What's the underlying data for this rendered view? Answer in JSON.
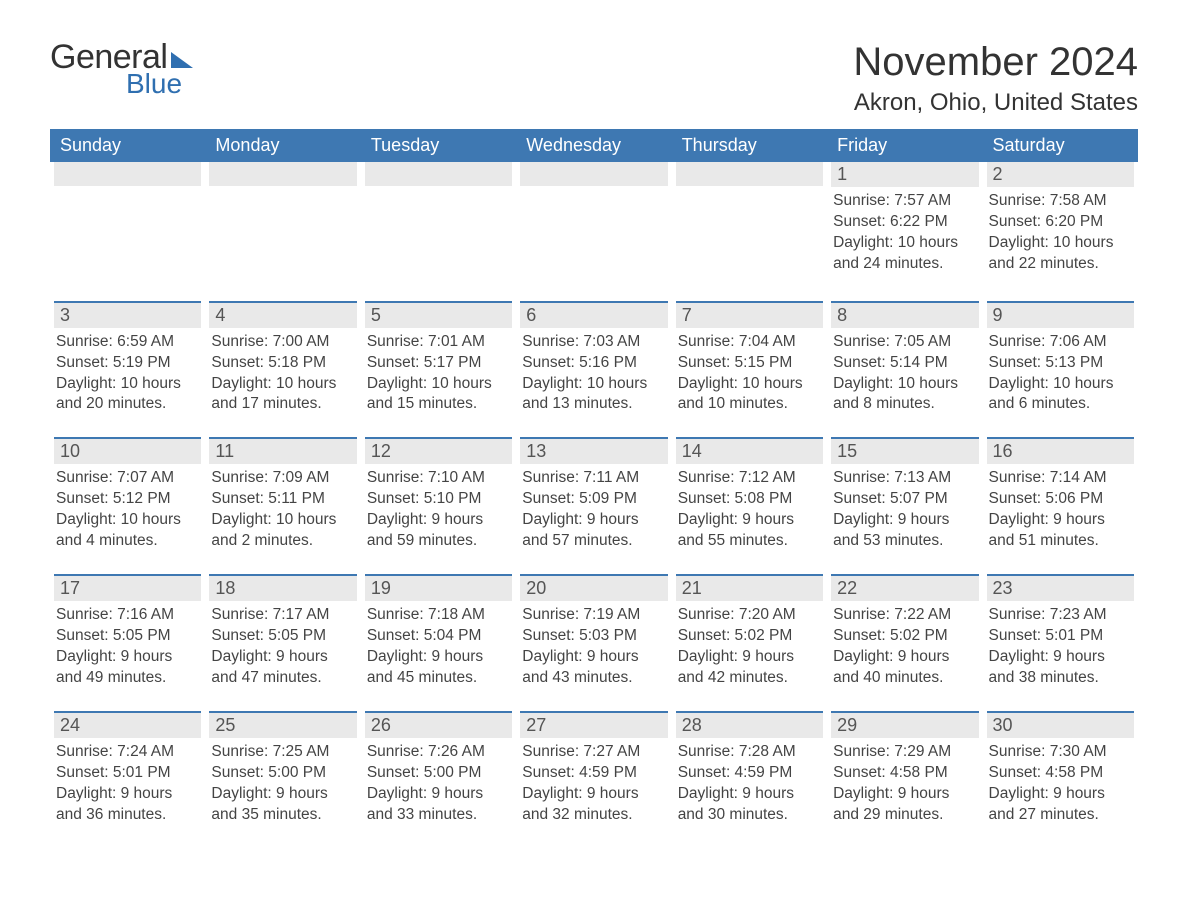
{
  "logo": {
    "word1": "General",
    "word2": "Blue"
  },
  "title": {
    "month_year": "November 2024",
    "location": "Akron, Ohio, United States"
  },
  "colors": {
    "header_bg": "#3e78b2",
    "header_text": "#ffffff",
    "daynum_bg": "#e9e9e9",
    "daynum_border": "#3e78b2",
    "text": "#333333",
    "brand_blue": "#2f6fb0"
  },
  "day_headers": [
    "Sunday",
    "Monday",
    "Tuesday",
    "Wednesday",
    "Thursday",
    "Friday",
    "Saturday"
  ],
  "weeks": [
    [
      null,
      null,
      null,
      null,
      null,
      {
        "n": "1",
        "sunrise": "Sunrise: 7:57 AM",
        "sunset": "Sunset: 6:22 PM",
        "daylight": "Daylight: 10 hours and 24 minutes."
      },
      {
        "n": "2",
        "sunrise": "Sunrise: 7:58 AM",
        "sunset": "Sunset: 6:20 PM",
        "daylight": "Daylight: 10 hours and 22 minutes."
      }
    ],
    [
      {
        "n": "3",
        "sunrise": "Sunrise: 6:59 AM",
        "sunset": "Sunset: 5:19 PM",
        "daylight": "Daylight: 10 hours and 20 minutes."
      },
      {
        "n": "4",
        "sunrise": "Sunrise: 7:00 AM",
        "sunset": "Sunset: 5:18 PM",
        "daylight": "Daylight: 10 hours and 17 minutes."
      },
      {
        "n": "5",
        "sunrise": "Sunrise: 7:01 AM",
        "sunset": "Sunset: 5:17 PM",
        "daylight": "Daylight: 10 hours and 15 minutes."
      },
      {
        "n": "6",
        "sunrise": "Sunrise: 7:03 AM",
        "sunset": "Sunset: 5:16 PM",
        "daylight": "Daylight: 10 hours and 13 minutes."
      },
      {
        "n": "7",
        "sunrise": "Sunrise: 7:04 AM",
        "sunset": "Sunset: 5:15 PM",
        "daylight": "Daylight: 10 hours and 10 minutes."
      },
      {
        "n": "8",
        "sunrise": "Sunrise: 7:05 AM",
        "sunset": "Sunset: 5:14 PM",
        "daylight": "Daylight: 10 hours and 8 minutes."
      },
      {
        "n": "9",
        "sunrise": "Sunrise: 7:06 AM",
        "sunset": "Sunset: 5:13 PM",
        "daylight": "Daylight: 10 hours and 6 minutes."
      }
    ],
    [
      {
        "n": "10",
        "sunrise": "Sunrise: 7:07 AM",
        "sunset": "Sunset: 5:12 PM",
        "daylight": "Daylight: 10 hours and 4 minutes."
      },
      {
        "n": "11",
        "sunrise": "Sunrise: 7:09 AM",
        "sunset": "Sunset: 5:11 PM",
        "daylight": "Daylight: 10 hours and 2 minutes."
      },
      {
        "n": "12",
        "sunrise": "Sunrise: 7:10 AM",
        "sunset": "Sunset: 5:10 PM",
        "daylight": "Daylight: 9 hours and 59 minutes."
      },
      {
        "n": "13",
        "sunrise": "Sunrise: 7:11 AM",
        "sunset": "Sunset: 5:09 PM",
        "daylight": "Daylight: 9 hours and 57 minutes."
      },
      {
        "n": "14",
        "sunrise": "Sunrise: 7:12 AM",
        "sunset": "Sunset: 5:08 PM",
        "daylight": "Daylight: 9 hours and 55 minutes."
      },
      {
        "n": "15",
        "sunrise": "Sunrise: 7:13 AM",
        "sunset": "Sunset: 5:07 PM",
        "daylight": "Daylight: 9 hours and 53 minutes."
      },
      {
        "n": "16",
        "sunrise": "Sunrise: 7:14 AM",
        "sunset": "Sunset: 5:06 PM",
        "daylight": "Daylight: 9 hours and 51 minutes."
      }
    ],
    [
      {
        "n": "17",
        "sunrise": "Sunrise: 7:16 AM",
        "sunset": "Sunset: 5:05 PM",
        "daylight": "Daylight: 9 hours and 49 minutes."
      },
      {
        "n": "18",
        "sunrise": "Sunrise: 7:17 AM",
        "sunset": "Sunset: 5:05 PM",
        "daylight": "Daylight: 9 hours and 47 minutes."
      },
      {
        "n": "19",
        "sunrise": "Sunrise: 7:18 AM",
        "sunset": "Sunset: 5:04 PM",
        "daylight": "Daylight: 9 hours and 45 minutes."
      },
      {
        "n": "20",
        "sunrise": "Sunrise: 7:19 AM",
        "sunset": "Sunset: 5:03 PM",
        "daylight": "Daylight: 9 hours and 43 minutes."
      },
      {
        "n": "21",
        "sunrise": "Sunrise: 7:20 AM",
        "sunset": "Sunset: 5:02 PM",
        "daylight": "Daylight: 9 hours and 42 minutes."
      },
      {
        "n": "22",
        "sunrise": "Sunrise: 7:22 AM",
        "sunset": "Sunset: 5:02 PM",
        "daylight": "Daylight: 9 hours and 40 minutes."
      },
      {
        "n": "23",
        "sunrise": "Sunrise: 7:23 AM",
        "sunset": "Sunset: 5:01 PM",
        "daylight": "Daylight: 9 hours and 38 minutes."
      }
    ],
    [
      {
        "n": "24",
        "sunrise": "Sunrise: 7:24 AM",
        "sunset": "Sunset: 5:01 PM",
        "daylight": "Daylight: 9 hours and 36 minutes."
      },
      {
        "n": "25",
        "sunrise": "Sunrise: 7:25 AM",
        "sunset": "Sunset: 5:00 PM",
        "daylight": "Daylight: 9 hours and 35 minutes."
      },
      {
        "n": "26",
        "sunrise": "Sunrise: 7:26 AM",
        "sunset": "Sunset: 5:00 PM",
        "daylight": "Daylight: 9 hours and 33 minutes."
      },
      {
        "n": "27",
        "sunrise": "Sunrise: 7:27 AM",
        "sunset": "Sunset: 4:59 PM",
        "daylight": "Daylight: 9 hours and 32 minutes."
      },
      {
        "n": "28",
        "sunrise": "Sunrise: 7:28 AM",
        "sunset": "Sunset: 4:59 PM",
        "daylight": "Daylight: 9 hours and 30 minutes."
      },
      {
        "n": "29",
        "sunrise": "Sunrise: 7:29 AM",
        "sunset": "Sunset: 4:58 PM",
        "daylight": "Daylight: 9 hours and 29 minutes."
      },
      {
        "n": "30",
        "sunrise": "Sunrise: 7:30 AM",
        "sunset": "Sunset: 4:58 PM",
        "daylight": "Daylight: 9 hours and 27 minutes."
      }
    ]
  ]
}
